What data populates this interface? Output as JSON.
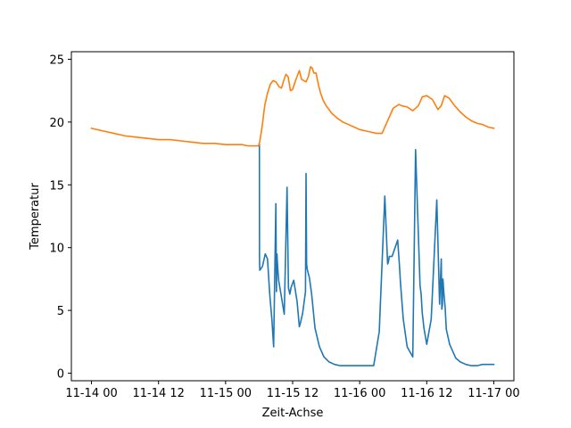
{
  "chart_data": {
    "type": "line",
    "title": "",
    "xlabel": "Zeit-Achse",
    "ylabel": "Temperatur",
    "x_ticks": [
      "11-14 00",
      "11-14 12",
      "11-15 00",
      "11-15 12",
      "11-16 00",
      "11-16 12",
      "11-17 00"
    ],
    "x_tick_hours": [
      0,
      12,
      24,
      36,
      48,
      60,
      72
    ],
    "y_ticks": [
      0,
      5,
      10,
      15,
      20,
      25
    ],
    "xlim": [
      -3.6,
      75.6
    ],
    "ylim": [
      -0.6,
      25.6
    ],
    "grid": false,
    "legend": "none",
    "series": [
      {
        "color": "#1f77b4",
        "x": [
          30.05,
          30.07,
          30.12,
          30.6,
          31.1,
          31.5,
          31.9,
          32.3,
          32.6,
          33.0,
          33.1,
          33.2,
          33.25,
          33.35,
          33.5,
          33.8,
          34.5,
          35.0,
          35.25,
          35.5,
          35.6,
          35.7,
          36.2,
          36.8,
          37.2,
          37.4,
          37.8,
          38.3,
          38.4,
          38.5,
          38.6,
          39.0,
          39.4,
          40.0,
          40.8,
          41.6,
          42.5,
          43.5,
          44.5,
          45.5,
          46.5,
          47.5,
          48.5,
          49.5,
          50.5,
          51.5,
          52.5,
          53.0,
          53.1,
          53.2,
          53.3,
          53.8,
          54.8,
          55.1,
          55.3,
          55.8,
          56.5,
          57.5,
          58.0,
          58.8,
          59.0,
          59.1,
          59.2,
          59.5,
          60.0,
          60.8,
          61.8,
          62.3,
          62.6,
          62.7,
          62.8,
          62.9,
          63.05,
          63.2,
          63.3,
          63.5,
          64.1,
          65.2,
          66.0,
          67.0,
          68.0,
          69.0,
          70.0,
          71.0,
          72.0
        ],
        "y": [
          18.2,
          9.2,
          8.2,
          8.5,
          9.5,
          9.1,
          6.3,
          4.2,
          2.1,
          13.5,
          6.5,
          9.5,
          9.0,
          8.3,
          7.4,
          6.6,
          4.7,
          14.8,
          6.8,
          6.3,
          6.5,
          6.8,
          7.4,
          5.7,
          3.7,
          4.0,
          4.8,
          6.5,
          15.9,
          8.7,
          8.3,
          7.6,
          6.3,
          3.6,
          2.1,
          1.3,
          0.9,
          0.7,
          0.6,
          0.6,
          0.6,
          0.6,
          0.6,
          0.6,
          0.6,
          3.3,
          14.1,
          8.7,
          8.8,
          9.0,
          9.3,
          9.3,
          10.6,
          8.7,
          7.2,
          4.3,
          2.1,
          1.3,
          17.8,
          7.0,
          6.3,
          5.5,
          4.8,
          3.6,
          2.3,
          4.3,
          13.8,
          5.5,
          9.1,
          5.1,
          5.4,
          7.5,
          6.5,
          5.7,
          5.2,
          3.5,
          2.3,
          1.2,
          0.9,
          0.7,
          0.6,
          0.6,
          0.7,
          0.7,
          0.7
        ]
      },
      {
        "color": "#ff7f0e",
        "x": [
          0,
          2,
          4,
          6,
          8,
          10,
          12,
          14,
          16,
          18,
          20,
          22,
          24,
          26,
          27,
          28,
          29,
          29.9,
          30.1,
          30.5,
          31.0,
          31.5,
          32.0,
          32.5,
          33.0,
          33.6,
          34.0,
          34.4,
          34.8,
          35.2,
          35.6,
          36.0,
          36.6,
          37.2,
          37.6,
          38.0,
          38.4,
          38.8,
          39.2,
          39.5,
          39.8,
          40.2,
          40.6,
          41.0,
          41.5,
          42.0,
          43.0,
          44.0,
          45.0,
          46.0,
          47.0,
          48.0,
          49.0,
          50.0,
          51.0,
          52.0,
          53.0,
          54.0,
          55.0,
          55.5,
          56.5,
          57.5,
          58.5,
          59.2,
          60.0,
          61.0,
          62.0,
          62.6,
          63.2,
          64.0,
          65.0,
          66.0,
          67.0,
          68.0,
          69.0,
          70.0,
          71.0,
          72.0
        ],
        "y": [
          19.5,
          19.3,
          19.1,
          18.9,
          18.8,
          18.7,
          18.6,
          18.6,
          18.5,
          18.4,
          18.3,
          18.3,
          18.2,
          18.2,
          18.2,
          18.1,
          18.1,
          18.1,
          18.4,
          19.5,
          21.3,
          22.3,
          23.0,
          23.3,
          23.2,
          22.8,
          22.7,
          23.3,
          23.8,
          23.6,
          22.5,
          22.6,
          23.4,
          24.1,
          23.4,
          23.3,
          23.2,
          23.6,
          24.4,
          24.3,
          23.9,
          23.9,
          23.0,
          22.3,
          21.7,
          21.3,
          20.7,
          20.3,
          20.0,
          19.8,
          19.6,
          19.4,
          19.3,
          19.2,
          19.1,
          19.1,
          20.1,
          21.1,
          21.4,
          21.3,
          21.2,
          20.9,
          21.3,
          22.0,
          22.1,
          21.8,
          21.0,
          21.3,
          22.1,
          21.9,
          21.3,
          20.8,
          20.4,
          20.1,
          19.9,
          19.8,
          19.6,
          19.5
        ]
      }
    ]
  }
}
